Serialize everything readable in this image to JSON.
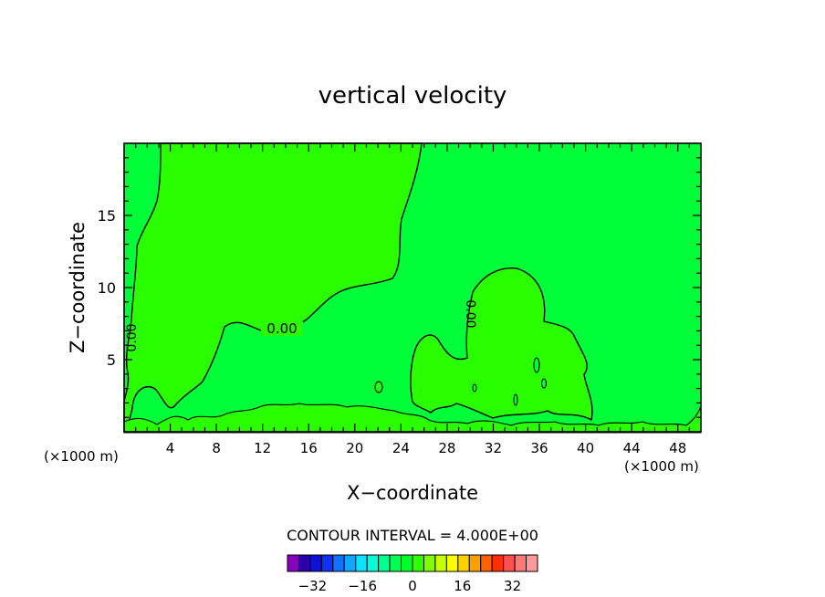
{
  "chart_data": {
    "type": "contour",
    "title": "vertical velocity",
    "xlabel": "X−coordinate",
    "ylabel": "Z−coordinate",
    "x_unit_left": "(×1000 m)",
    "x_unit_right": "(×1000 m)",
    "xlim": [
      0,
      50
    ],
    "ylim": [
      0,
      20
    ],
    "x_ticks": [
      4,
      8,
      12,
      16,
      20,
      24,
      28,
      32,
      36,
      40,
      44,
      48
    ],
    "y_ticks": [
      5,
      10,
      15
    ],
    "grid": false,
    "contour_label": "0.00",
    "contour_interval_text": "CONTOUR INTERVAL = 4.000E+00",
    "colorbar": {
      "min": -40,
      "max": 40,
      "tick_values": [
        -32,
        -16,
        0,
        16,
        32
      ],
      "colors": [
        "#8a00c0",
        "#2a00a8",
        "#1010d8",
        "#1030ff",
        "#1070ff",
        "#10a8ff",
        "#10e0ff",
        "#00ffd8",
        "#00ff90",
        "#00ff50",
        "#00ff28",
        "#30ff00",
        "#80ff00",
        "#c8ff00",
        "#ffff00",
        "#ffd000",
        "#ffa000",
        "#ff6000",
        "#ff3000",
        "#ff5050",
        "#ff7878",
        "#ff9a9a"
      ]
    },
    "regions": [
      {
        "name": "upward-0-to-4",
        "color": "#2aff00"
      },
      {
        "name": "downward-minus4-to-0",
        "color": "#00ff38"
      }
    ]
  }
}
